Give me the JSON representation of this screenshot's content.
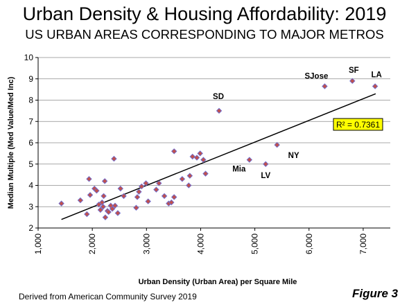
{
  "title": "Urban Density & Housing Affordability: 2019",
  "subtitle": "US URBAN AREAS CORRESPONDING TO MAJOR METROS",
  "footnote": "Derived from American Community Survey 2019",
  "figure_label": "Figure 3",
  "chart_data": {
    "type": "scatter",
    "xlabel": "Urban Density (Urban Area) per Square Mile",
    "ylabel": "Median Multiple (Med Value/Med Inc)",
    "xlim": [
      1000,
      7500
    ],
    "ylim": [
      2,
      10
    ],
    "x_ticks": [
      "1,000",
      "2,000",
      "3,000",
      "4,000",
      "5,000",
      "6,000",
      "7,000"
    ],
    "y_ticks": [
      "2",
      "3",
      "4",
      "5",
      "6",
      "7",
      "8",
      "9",
      "10"
    ],
    "grid": "horizontal",
    "marker_color": "#c0504d",
    "marker_outline": "#6f6fd1",
    "trendline_color": "#000000",
    "r_squared_label": "R² = 0.7361",
    "r_squared_bg": "#ffff00",
    "trendline": {
      "x": [
        1430,
        7230
      ],
      "y": [
        2.4,
        8.3
      ]
    },
    "labeled_points": [
      {
        "label": "SJose",
        "x": 6290,
        "y": 8.65
      },
      {
        "label": "SF",
        "x": 6800,
        "y": 8.9
      },
      {
        "label": "LA",
        "x": 7220,
        "y": 8.65
      },
      {
        "label": "SD",
        "x": 4340,
        "y": 7.5
      },
      {
        "label": "NY",
        "x": 5410,
        "y": 5.9
      },
      {
        "label": "Mia",
        "x": 4900,
        "y": 5.2
      },
      {
        "label": "LV",
        "x": 5200,
        "y": 5.0
      }
    ],
    "points": [
      {
        "x": 1430,
        "y": 3.15
      },
      {
        "x": 1780,
        "y": 3.3
      },
      {
        "x": 1900,
        "y": 2.65
      },
      {
        "x": 1940,
        "y": 4.3
      },
      {
        "x": 1960,
        "y": 3.55
      },
      {
        "x": 2040,
        "y": 3.85
      },
      {
        "x": 2080,
        "y": 3.75
      },
      {
        "x": 2120,
        "y": 3.1
      },
      {
        "x": 2150,
        "y": 2.85
      },
      {
        "x": 2180,
        "y": 3.2
      },
      {
        "x": 2200,
        "y": 3.0
      },
      {
        "x": 2210,
        "y": 3.5
      },
      {
        "x": 2230,
        "y": 4.2
      },
      {
        "x": 2240,
        "y": 2.5
      },
      {
        "x": 2280,
        "y": 2.8
      },
      {
        "x": 2300,
        "y": 2.75
      },
      {
        "x": 2340,
        "y": 3.05
      },
      {
        "x": 2370,
        "y": 2.9
      },
      {
        "x": 2400,
        "y": 5.25
      },
      {
        "x": 2420,
        "y": 3.05
      },
      {
        "x": 2470,
        "y": 2.7
      },
      {
        "x": 2520,
        "y": 3.85
      },
      {
        "x": 2580,
        "y": 3.5
      },
      {
        "x": 2810,
        "y": 2.95
      },
      {
        "x": 2830,
        "y": 3.45
      },
      {
        "x": 2860,
        "y": 3.7
      },
      {
        "x": 2910,
        "y": 3.95
      },
      {
        "x": 2990,
        "y": 4.1
      },
      {
        "x": 3030,
        "y": 3.25
      },
      {
        "x": 3180,
        "y": 3.8
      },
      {
        "x": 3230,
        "y": 4.1
      },
      {
        "x": 3330,
        "y": 3.5
      },
      {
        "x": 3410,
        "y": 3.15
      },
      {
        "x": 3460,
        "y": 3.2
      },
      {
        "x": 3510,
        "y": 3.45
      },
      {
        "x": 3510,
        "y": 5.6
      },
      {
        "x": 3660,
        "y": 4.3
      },
      {
        "x": 3780,
        "y": 4.0
      },
      {
        "x": 3800,
        "y": 4.45
      },
      {
        "x": 3850,
        "y": 5.35
      },
      {
        "x": 3930,
        "y": 5.3
      },
      {
        "x": 3990,
        "y": 5.5
      },
      {
        "x": 4050,
        "y": 5.2
      },
      {
        "x": 4090,
        "y": 4.55
      }
    ]
  }
}
